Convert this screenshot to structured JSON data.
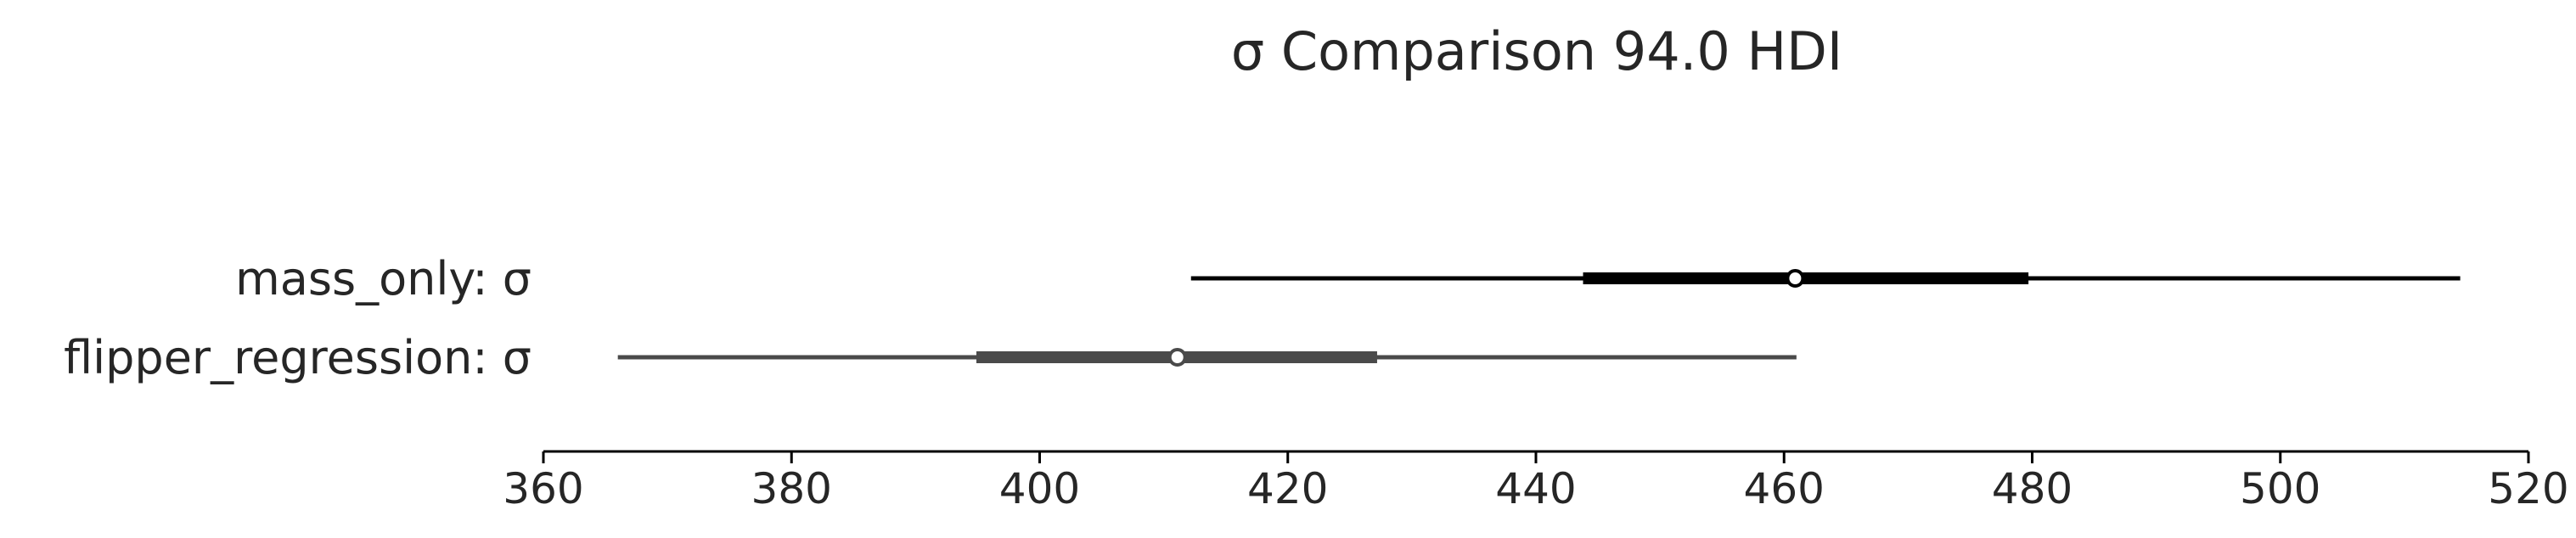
{
  "chart_data": {
    "type": "forest",
    "title": "σ Comparison 94.0 HDI",
    "xlim": [
      360,
      520
    ],
    "xticks": [
      360,
      380,
      400,
      420,
      440,
      460,
      480,
      500,
      520
    ],
    "xtick_labels": [
      "360",
      "380",
      "400",
      "420",
      "440",
      "460",
      "480",
      "500",
      "520"
    ],
    "grid": false,
    "series": [
      {
        "name": "mass_only: σ",
        "color": "#000000",
        "hdi_94": [
          412.2,
          514.5
        ],
        "iqr": [
          443.8,
          479.7
        ],
        "point": 460.9
      },
      {
        "name": "flipper_regression: σ",
        "color": "#4a4a4a",
        "hdi_94": [
          366.0,
          461.0
        ],
        "iqr": [
          394.9,
          427.2
        ],
        "point": 411.1
      }
    ]
  }
}
